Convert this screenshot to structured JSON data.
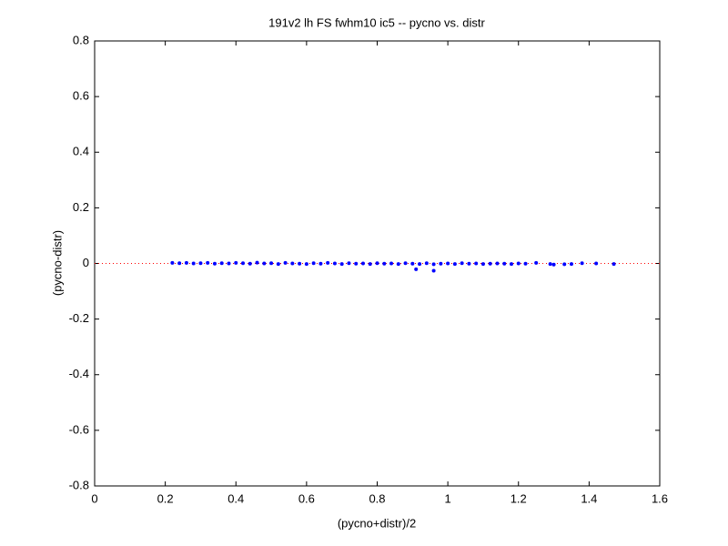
{
  "chart_data": {
    "type": "scatter",
    "title": "191v2 lh FS fwhm10 ic5 -- pycno vs. distr",
    "x_label": "(pycno+distr)/2",
    "y_label": "(pycno-distr)",
    "xlim": [
      0,
      1.6
    ],
    "ylim": [
      -0.8,
      0.8
    ],
    "xticks": [
      0,
      0.2,
      0.4,
      0.6,
      0.8,
      1,
      1.2,
      1.4,
      1.6
    ],
    "yticks": [
      -0.8,
      -0.6,
      -0.4,
      -0.2,
      0,
      0.2,
      0.4,
      0.6,
      0.8
    ],
    "reference_line": {
      "y": 0,
      "color": "#ff0000"
    },
    "series": [
      {
        "color": "#0000ff",
        "x": [
          0.22,
          0.24,
          0.26,
          0.28,
          0.3,
          0.32,
          0.34,
          0.36,
          0.38,
          0.4,
          0.42,
          0.44,
          0.46,
          0.48,
          0.5,
          0.52,
          0.54,
          0.56,
          0.58,
          0.6,
          0.62,
          0.64,
          0.66,
          0.68,
          0.7,
          0.72,
          0.74,
          0.76,
          0.78,
          0.8,
          0.82,
          0.84,
          0.86,
          0.88,
          0.9,
          0.91,
          0.92,
          0.94,
          0.96,
          0.96,
          0.98,
          1.0,
          1.02,
          1.04,
          1.06,
          1.08,
          1.1,
          1.12,
          1.14,
          1.16,
          1.18,
          1.2,
          1.22,
          1.25,
          1.29,
          1.3,
          1.33,
          1.35,
          1.38,
          1.42,
          1.47
        ],
        "values": [
          0.002,
          0.001,
          0.002,
          0.0,
          0.001,
          0.002,
          -0.001,
          0.001,
          0.0,
          0.002,
          0.001,
          -0.001,
          0.003,
          0.0,
          0.001,
          -0.002,
          0.002,
          0.0,
          -0.001,
          -0.002,
          0.001,
          -0.001,
          0.002,
          0.0,
          -0.002,
          0.001,
          -0.001,
          0.0,
          -0.002,
          0.001,
          -0.001,
          0.0,
          -0.002,
          0.001,
          -0.001,
          -0.021,
          -0.002,
          0.001,
          -0.003,
          -0.026,
          -0.001,
          0.0,
          -0.002,
          0.001,
          -0.001,
          0.0,
          -0.002,
          -0.001,
          0.0,
          -0.001,
          -0.002,
          0.0,
          -0.001,
          0.002,
          -0.002,
          -0.004,
          -0.003,
          -0.002,
          0.001,
          0.0,
          -0.002
        ]
      }
    ]
  }
}
